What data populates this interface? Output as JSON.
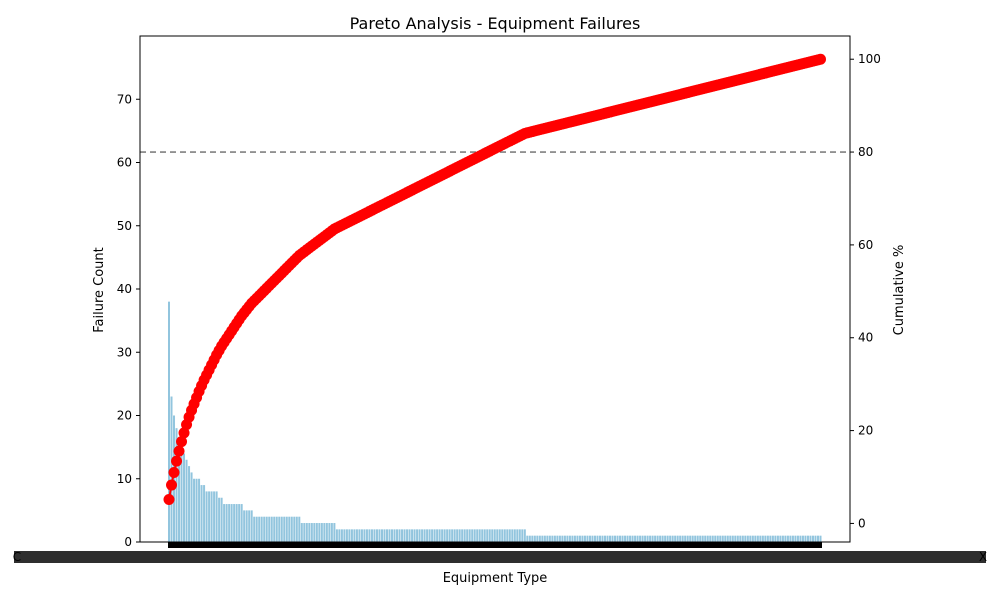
{
  "chart_data": {
    "type": "bar+line",
    "title": "Pareto Analysis - Equipment Failures",
    "xlabel": "Equipment Type",
    "ylabel_left": "Failure Count",
    "ylabel_right": "Cumulative %",
    "ylim_left": [
      0,
      80
    ],
    "yticks_left": [
      0,
      10,
      20,
      30,
      40,
      50,
      60,
      70
    ],
    "ylim_right": [
      -4,
      105
    ],
    "yticks_right": [
      0,
      20,
      40,
      60,
      80,
      100
    ],
    "threshold": 80,
    "threshold_style": "dashed gray",
    "grid": false,
    "series": [
      {
        "name": "Failure Count",
        "axis": "left",
        "kind": "bar",
        "color": "#92c5de"
      },
      {
        "name": "Cumulative %",
        "axis": "right",
        "kind": "line+markers",
        "color": "#ff0000"
      }
    ],
    "bar_values": [
      38,
      23,
      20,
      18,
      16,
      15,
      14,
      13,
      12,
      11,
      10,
      10,
      10,
      9,
      9,
      8,
      8,
      8,
      8,
      8,
      7,
      7,
      6,
      6,
      6,
      6,
      6,
      6,
      6,
      6,
      5,
      5,
      5,
      5,
      4,
      4,
      4,
      4,
      4,
      4,
      4,
      4,
      4,
      4,
      4,
      4,
      4,
      4,
      4,
      4,
      4,
      4,
      4,
      3,
      3,
      3,
      3,
      3,
      3,
      3,
      3,
      3,
      3,
      3,
      3,
      3,
      3,
      2,
      2,
      2,
      2,
      2,
      2,
      2,
      2,
      2,
      2,
      2,
      2,
      2,
      2,
      2,
      2,
      2,
      2,
      2,
      2,
      2,
      2,
      2,
      2,
      2,
      2,
      2,
      2,
      2,
      2,
      2,
      2,
      2,
      2,
      2,
      2,
      2,
      2,
      2,
      2,
      2,
      2,
      2,
      2,
      2,
      2,
      2,
      2,
      2,
      2,
      2,
      2,
      2,
      2,
      2,
      2,
      2,
      2,
      2,
      2,
      2,
      2,
      2,
      2,
      2,
      2,
      2,
      2,
      2,
      2,
      2,
      2,
      2,
      2,
      2,
      2,
      1,
      1,
      1,
      1,
      1,
      1,
      1,
      1,
      1,
      1,
      1,
      1,
      1,
      1,
      1,
      1,
      1,
      1,
      1,
      1,
      1,
      1,
      1,
      1,
      1,
      1,
      1,
      1,
      1,
      1,
      1,
      1,
      1,
      1,
      1,
      1,
      1,
      1,
      1,
      1,
      1,
      1,
      1,
      1,
      1,
      1,
      1,
      1,
      1,
      1,
      1,
      1,
      1,
      1,
      1,
      1,
      1,
      1,
      1,
      1,
      1,
      1,
      1,
      1,
      1,
      1,
      1,
      1,
      1,
      1,
      1,
      1,
      1,
      1,
      1,
      1,
      1,
      1,
      1,
      1,
      1,
      1,
      1,
      1,
      1,
      1,
      1,
      1,
      1,
      1,
      1,
      1,
      1,
      1,
      1,
      1,
      1,
      1,
      1,
      1,
      1,
      1,
      1,
      1,
      1,
      1,
      1,
      1,
      1,
      1,
      1,
      1,
      1,
      1,
      1,
      1,
      1,
      1
    ],
    "x_tick_labels_note": "category tick labels are illegibly overlapped in the source; rendered as an overlapping black band",
    "x_first_label": "C",
    "x_last_label": "X"
  },
  "colors": {
    "bar": "#92c5de",
    "cumulative": "#ff0000",
    "threshold": "#808080",
    "axis": "#000000"
  }
}
